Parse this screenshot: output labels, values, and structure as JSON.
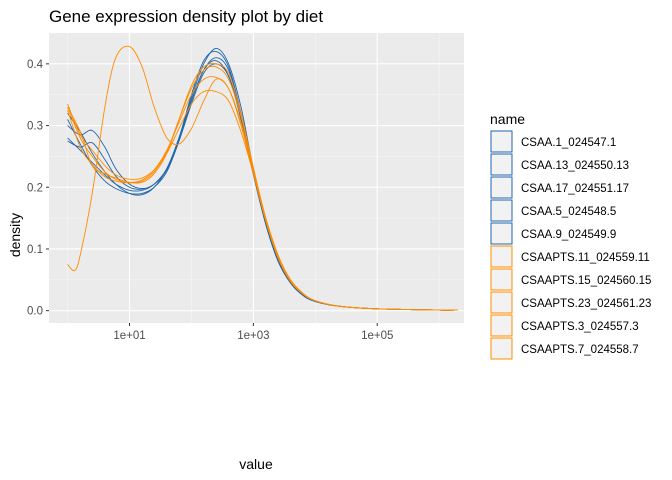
{
  "chart_data": {
    "type": "line",
    "title": "Gene expression density plot by diet",
    "xlabel": "value",
    "ylabel": "density",
    "x_scale": "log10",
    "xlim": [
      1,
      2000000
    ],
    "ylim": [
      0,
      0.45
    ],
    "x_ticks": [
      {
        "value": 10,
        "label": "1e+01"
      },
      {
        "value": 1000,
        "label": "1e+03"
      },
      {
        "value": 100000,
        "label": "1e+05"
      }
    ],
    "y_ticks": [
      {
        "value": 0.0,
        "label": "0.0"
      },
      {
        "value": 0.1,
        "label": "0.1"
      },
      {
        "value": 0.2,
        "label": "0.2"
      },
      {
        "value": 0.3,
        "label": "0.3"
      },
      {
        "value": 0.4,
        "label": "0.4"
      }
    ],
    "grid": true,
    "legend": {
      "title": "name",
      "position": "right"
    },
    "series": [
      {
        "name": "CSAA.1_024547.1",
        "color": "#2166ac",
        "x": [
          1,
          1.6,
          2.5,
          4,
          6,
          10,
          16,
          25,
          40,
          63,
          100,
          158,
          251,
          398,
          631,
          1000,
          1585,
          2512,
          3981,
          6310,
          10000,
          25119,
          100000,
          1000000,
          2000000
        ],
        "y": [
          0.28,
          0.26,
          0.24,
          0.22,
          0.205,
          0.195,
          0.195,
          0.205,
          0.23,
          0.28,
          0.34,
          0.39,
          0.405,
          0.38,
          0.31,
          0.22,
          0.14,
          0.08,
          0.045,
          0.025,
          0.015,
          0.007,
          0.003,
          0.001,
          0.001
        ]
      },
      {
        "name": "CSAA.13_024550.13",
        "color": "#2166ac",
        "x": [
          1,
          1.6,
          2.5,
          4,
          6,
          10,
          16,
          25,
          40,
          63,
          100,
          158,
          251,
          398,
          631,
          1000,
          1585,
          2512,
          3981,
          6310,
          10000,
          25119,
          100000,
          1000000,
          2000000
        ],
        "y": [
          0.3,
          0.285,
          0.292,
          0.265,
          0.23,
          0.205,
          0.198,
          0.205,
          0.23,
          0.28,
          0.35,
          0.405,
          0.42,
          0.395,
          0.32,
          0.225,
          0.14,
          0.08,
          0.045,
          0.025,
          0.015,
          0.007,
          0.003,
          0.001,
          0.001
        ]
      },
      {
        "name": "CSAA.17_024551.17",
        "color": "#2166ac",
        "x": [
          1,
          1.6,
          2.5,
          4,
          6,
          10,
          16,
          25,
          40,
          63,
          100,
          158,
          251,
          398,
          631,
          1000,
          1585,
          2512,
          3981,
          6310,
          10000,
          25119,
          100000,
          1000000,
          2000000
        ],
        "y": [
          0.32,
          0.29,
          0.255,
          0.225,
          0.205,
          0.19,
          0.188,
          0.2,
          0.23,
          0.28,
          0.345,
          0.4,
          0.425,
          0.4,
          0.33,
          0.23,
          0.145,
          0.082,
          0.045,
          0.025,
          0.015,
          0.007,
          0.003,
          0.001,
          0.001
        ]
      },
      {
        "name": "CSAA.5_024548.5",
        "color": "#2166ac",
        "x": [
          1,
          1.6,
          2.5,
          4,
          6,
          10,
          16,
          25,
          40,
          63,
          100,
          158,
          251,
          398,
          631,
          1000,
          1585,
          2512,
          3981,
          6310,
          10000,
          25119,
          100000,
          1000000,
          2000000
        ],
        "y": [
          0.31,
          0.27,
          0.235,
          0.21,
          0.198,
          0.19,
          0.19,
          0.2,
          0.225,
          0.275,
          0.335,
          0.385,
          0.4,
          0.38,
          0.315,
          0.225,
          0.145,
          0.082,
          0.045,
          0.025,
          0.015,
          0.007,
          0.003,
          0.001,
          0.001
        ]
      },
      {
        "name": "CSAA.9_024549.9",
        "color": "#2166ac",
        "x": [
          1,
          1.6,
          2.5,
          4,
          6,
          10,
          16,
          25,
          40,
          63,
          100,
          158,
          251,
          398,
          631,
          1000,
          1585,
          2512,
          3981,
          6310,
          10000,
          25119,
          100000,
          1000000,
          2000000
        ],
        "y": [
          0.275,
          0.265,
          0.272,
          0.245,
          0.218,
          0.2,
          0.197,
          0.205,
          0.228,
          0.275,
          0.34,
          0.39,
          0.41,
          0.39,
          0.32,
          0.228,
          0.145,
          0.082,
          0.045,
          0.025,
          0.015,
          0.007,
          0.003,
          0.001,
          0.001
        ]
      },
      {
        "name": "CSAAPTS.11_024559.11",
        "color": "#ff8c00",
        "x": [
          1,
          1.6,
          2.5,
          4,
          6,
          10,
          16,
          25,
          40,
          63,
          100,
          158,
          251,
          398,
          631,
          1000,
          1585,
          2512,
          3981,
          6310,
          10000,
          25119,
          100000,
          1000000,
          2000000
        ],
        "y": [
          0.33,
          0.28,
          0.25,
          0.225,
          0.213,
          0.208,
          0.212,
          0.228,
          0.26,
          0.305,
          0.35,
          0.375,
          0.378,
          0.36,
          0.305,
          0.228,
          0.15,
          0.088,
          0.05,
          0.028,
          0.016,
          0.007,
          0.003,
          0.001,
          0.001
        ]
      },
      {
        "name": "CSAAPTS.15_024560.15",
        "color": "#ff8c00",
        "x": [
          1,
          1.6,
          2.5,
          4,
          6,
          10,
          16,
          25,
          40,
          63,
          100,
          158,
          251,
          398,
          631,
          1000,
          1585,
          2512,
          3981,
          6310,
          10000,
          25119,
          100000,
          1000000,
          2000000
        ],
        "y": [
          0.335,
          0.285,
          0.26,
          0.235,
          0.22,
          0.213,
          0.215,
          0.228,
          0.255,
          0.295,
          0.335,
          0.355,
          0.355,
          0.34,
          0.29,
          0.222,
          0.15,
          0.09,
          0.05,
          0.028,
          0.016,
          0.007,
          0.003,
          0.001,
          0.001
        ]
      },
      {
        "name": "CSAAPTS.23_024561.23",
        "color": "#ff8c00",
        "x": [
          1,
          1.6,
          2.5,
          4,
          6,
          10,
          16,
          25,
          40,
          63,
          100,
          158,
          251,
          398,
          631,
          1000,
          1585,
          2512,
          3981,
          6310,
          10000,
          25119,
          100000,
          1000000,
          2000000
        ],
        "y": [
          0.325,
          0.265,
          0.237,
          0.217,
          0.21,
          0.207,
          0.21,
          0.225,
          0.258,
          0.31,
          0.36,
          0.39,
          0.395,
          0.375,
          0.315,
          0.23,
          0.148,
          0.086,
          0.048,
          0.027,
          0.016,
          0.007,
          0.003,
          0.001,
          0.001
        ]
      },
      {
        "name": "CSAAPTS.3_024557.3",
        "color": "#ff8c00",
        "x": [
          1,
          1.3,
          1.6,
          2.5,
          4,
          6,
          10,
          16,
          25,
          40,
          63,
          100,
          158,
          251,
          398,
          631,
          1000,
          1585,
          2512,
          3981,
          6310,
          10000,
          25119,
          100000,
          1000000,
          2000000
        ],
        "y": [
          0.075,
          0.065,
          0.09,
          0.19,
          0.33,
          0.41,
          0.428,
          0.395,
          0.33,
          0.28,
          0.27,
          0.295,
          0.34,
          0.375,
          0.36,
          0.3,
          0.222,
          0.145,
          0.085,
          0.047,
          0.027,
          0.016,
          0.007,
          0.003,
          0.001,
          0.001
        ]
      },
      {
        "name": "CSAAPTS.7_024558.7",
        "color": "#ff8c00",
        "x": [
          1,
          1.6,
          2.5,
          4,
          6,
          10,
          16,
          25,
          40,
          63,
          100,
          158,
          251,
          398,
          631,
          1000,
          1585,
          2512,
          3981,
          6310,
          10000,
          25119,
          100000,
          1000000,
          2000000
        ],
        "y": [
          0.33,
          0.29,
          0.235,
          0.222,
          0.215,
          0.208,
          0.208,
          0.222,
          0.255,
          0.31,
          0.365,
          0.395,
          0.4,
          0.385,
          0.32,
          0.232,
          0.15,
          0.088,
          0.05,
          0.028,
          0.016,
          0.007,
          0.003,
          0.001,
          0.001
        ]
      }
    ]
  }
}
